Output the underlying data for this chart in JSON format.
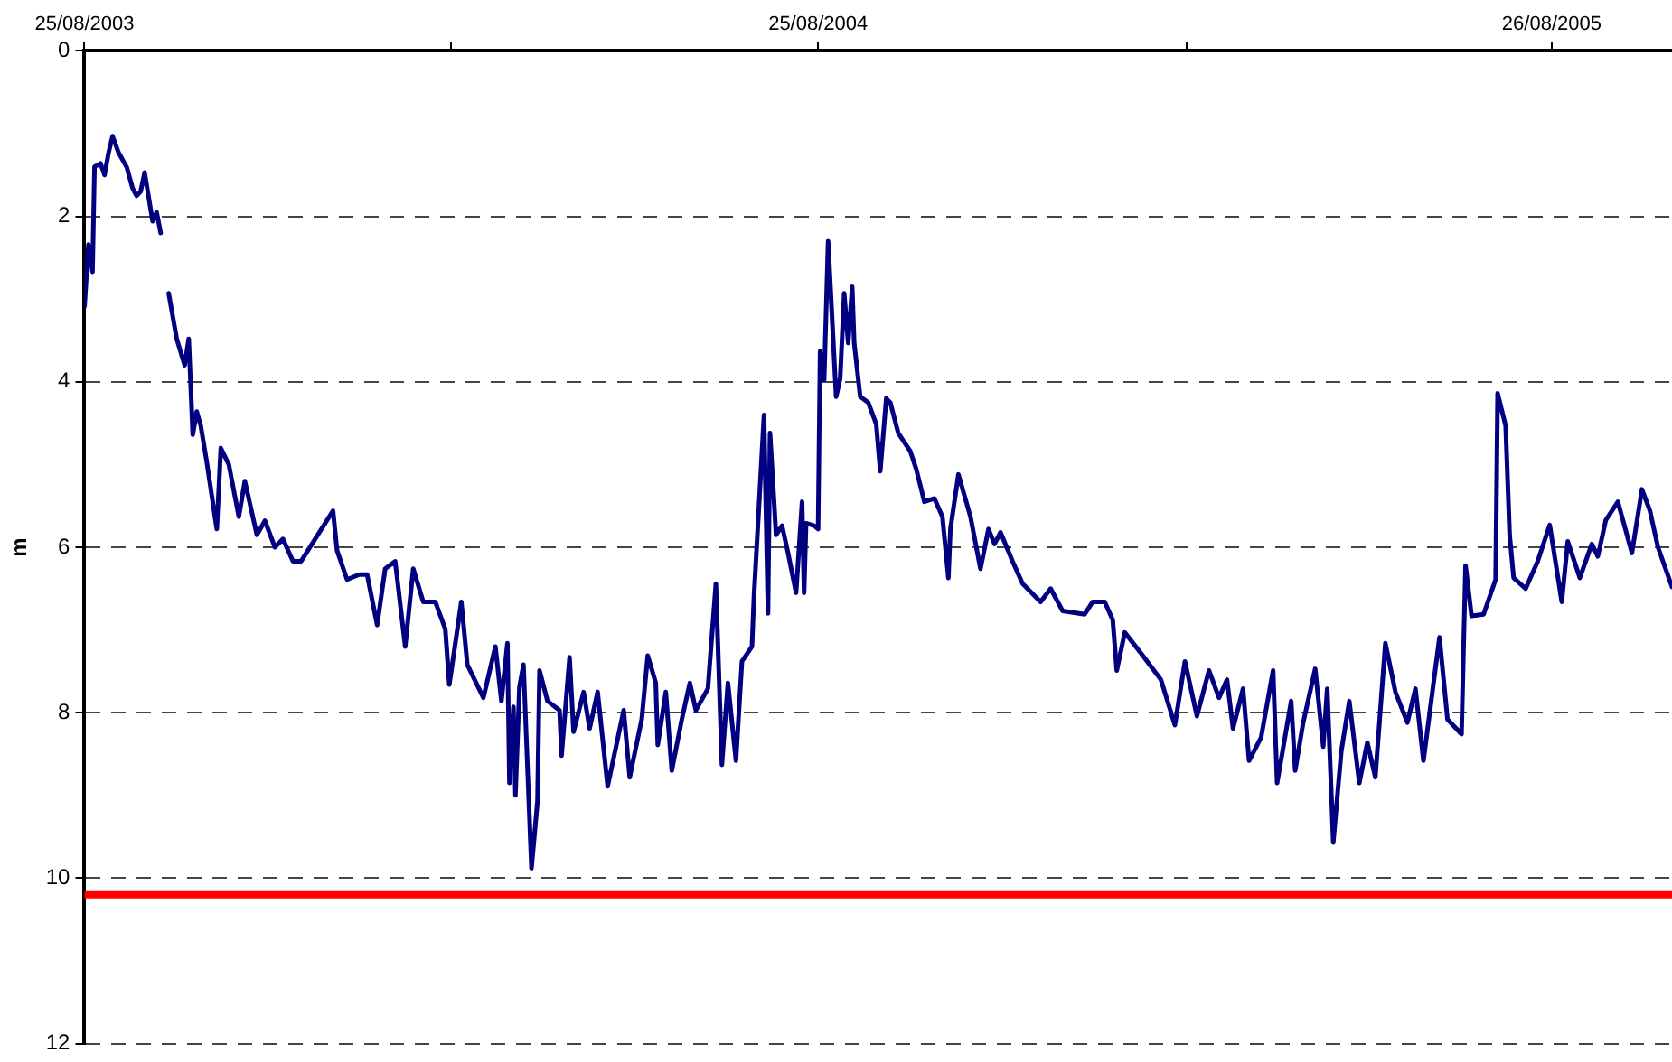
{
  "chart_data": {
    "type": "line",
    "ylabel": "m",
    "ylim": [
      12,
      0
    ],
    "yticks": [
      0,
      2,
      4,
      6,
      8,
      10,
      12
    ],
    "xlim": [
      "2003-08-25",
      "2005-10-25"
    ],
    "xticks": [
      {
        "value": "2003-08-25",
        "label": "25/08/2003"
      },
      {
        "value": "2004-02-24",
        "label": null
      },
      {
        "value": "2004-08-25",
        "label": "25/08/2004"
      },
      {
        "value": "2005-02-25",
        "label": null
      },
      {
        "value": "2005-08-26",
        "label": "26/08/2005"
      }
    ],
    "grid": "y",
    "legend": false,
    "line_style": "solid",
    "marker": "none",
    "ref_lines": [
      {
        "axis": "y",
        "value": 10.2,
        "color": "#ff0000",
        "line_style": "solid"
      }
    ],
    "x": [
      "2003-08-25",
      "2003-08-27",
      "2003-08-29",
      "2003-08-30",
      "2003-09-02",
      "2003-09-04",
      "2003-09-06",
      "2003-09-08",
      "2003-09-11",
      "2003-09-15",
      "2003-09-18",
      "2003-09-20",
      "2003-09-22",
      "2003-09-24",
      "2003-09-28",
      "2003-09-30",
      "2003-10-02",
      "2003-10-04",
      "2003-10-06",
      "2003-10-10",
      "2003-10-14",
      "2003-10-16",
      "2003-10-18",
      "2003-10-20",
      "2003-10-22",
      "2003-10-25",
      "2003-10-30",
      "2003-11-01",
      "2003-11-05",
      "2003-11-10",
      "2003-11-13",
      "2003-11-19",
      "2003-11-23",
      "2003-11-28",
      "2003-12-02",
      "2003-12-07",
      "2003-12-11",
      "2003-12-27",
      "2003-12-29",
      "2004-01-03",
      "2004-01-09",
      "2004-01-13",
      "2004-01-18",
      "2004-01-22",
      "2004-01-27",
      "2004-02-01",
      "2004-02-05",
      "2004-02-10",
      "2004-02-16",
      "2004-02-21",
      "2004-02-23",
      "2004-02-29",
      "2004-03-03",
      "2004-03-11",
      "2004-03-17",
      "2004-03-20",
      "2004-03-23",
      "2004-03-24",
      "2004-03-26",
      "2004-03-27",
      "2004-03-29",
      "2004-03-31",
      "2004-04-04",
      "2004-04-07",
      "2004-04-08",
      "2004-04-12",
      "2004-04-18",
      "2004-04-19",
      "2004-04-23",
      "2004-04-25",
      "2004-04-30",
      "2004-05-03",
      "2004-05-07",
      "2004-05-12",
      "2004-05-20",
      "2004-05-23",
      "2004-05-29",
      "2004-06-01",
      "2004-06-05",
      "2004-06-06",
      "2004-06-10",
      "2004-06-13",
      "2004-06-18",
      "2004-06-22",
      "2004-06-25",
      "2004-07-01",
      "2004-07-05",
      "2004-07-08",
      "2004-07-11",
      "2004-07-15",
      "2004-07-18",
      "2004-07-23",
      "2004-07-24",
      "2004-07-29",
      "2004-07-31",
      "2004-08-01",
      "2004-08-04",
      "2004-08-07",
      "2004-08-10",
      "2004-08-14",
      "2004-08-17",
      "2004-08-18",
      "2004-08-19",
      "2004-08-23",
      "2004-08-25",
      "2004-08-26",
      "2004-08-28",
      "2004-08-30",
      "2004-09-03",
      "2004-09-05",
      "2004-09-07",
      "2004-09-09",
      "2004-09-11",
      "2004-09-12",
      "2004-09-15",
      "2004-09-19",
      "2004-09-23",
      "2004-09-25",
      "2004-09-28",
      "2004-09-30",
      "2004-10-04",
      "2004-10-10",
      "2004-10-13",
      "2004-10-17",
      "2004-10-22",
      "2004-10-26",
      "2004-10-29",
      "2004-10-30",
      "2004-11-03",
      "2004-11-09",
      "2004-11-14",
      "2004-11-18",
      "2004-11-21",
      "2004-11-24",
      "2004-11-30",
      "2004-12-05",
      "2004-12-14",
      "2004-12-19",
      "2004-12-25",
      "2005-01-05",
      "2005-01-09",
      "2005-01-15",
      "2005-01-19",
      "2005-01-21",
      "2005-01-25",
      "2005-02-03",
      "2005-02-12",
      "2005-02-19",
      "2005-02-24",
      "2005-03-02",
      "2005-03-08",
      "2005-03-13",
      "2005-03-17",
      "2005-03-20",
      "2005-03-25",
      "2005-03-28",
      "2005-04-03",
      "2005-04-09",
      "2005-04-11",
      "2005-04-18",
      "2005-04-20",
      "2005-04-24",
      "2005-04-30",
      "2005-05-04",
      "2005-05-06",
      "2005-05-09",
      "2005-05-13",
      "2005-05-17",
      "2005-05-22",
      "2005-05-26",
      "2005-05-30",
      "2005-06-04",
      "2005-06-09",
      "2005-06-15",
      "2005-06-19",
      "2005-06-23",
      "2005-07-01",
      "2005-07-05",
      "2005-07-12",
      "2005-07-14",
      "2005-07-17",
      "2005-07-23",
      "2005-07-29",
      "2005-07-30",
      "2005-08-03",
      "2005-08-05",
      "2005-08-07",
      "2005-08-13",
      "2005-08-19",
      "2005-08-25",
      "2005-08-31",
      "2005-09-03",
      "2005-09-09",
      "2005-09-15",
      "2005-09-18",
      "2005-09-22",
      "2005-09-28",
      "2005-10-05",
      "2005-10-10",
      "2005-10-14",
      "2005-10-18",
      "2005-10-25"
    ],
    "series": [
      {
        "color": "#000080",
        "values": [
          3.09,
          2.34,
          2.67,
          1.4,
          1.36,
          1.5,
          1.23,
          1.03,
          1.23,
          1.4,
          1.66,
          1.75,
          1.7,
          1.47,
          2.06,
          1.95,
          2.2,
          null,
          2.93,
          3.48,
          3.8,
          3.48,
          4.64,
          4.36,
          4.53,
          4.97,
          5.78,
          4.8,
          5.0,
          5.63,
          5.2,
          5.85,
          5.68,
          6.0,
          5.9,
          6.17,
          6.17,
          5.56,
          6.04,
          6.39,
          6.33,
          6.33,
          6.94,
          6.26,
          6.17,
          7.2,
          6.26,
          6.66,
          6.66,
          6.99,
          7.66,
          6.66,
          7.42,
          7.82,
          7.2,
          7.86,
          7.16,
          8.85,
          7.93,
          9.0,
          7.69,
          7.42,
          9.88,
          9.07,
          7.49,
          7.86,
          7.97,
          8.52,
          7.33,
          8.23,
          7.75,
          8.19,
          7.75,
          8.89,
          7.97,
          8.78,
          8.08,
          7.31,
          7.64,
          8.39,
          7.75,
          8.7,
          8.08,
          7.64,
          7.97,
          7.71,
          6.44,
          8.63,
          7.64,
          8.58,
          7.38,
          7.2,
          6.59,
          4.4,
          6.8,
          4.62,
          5.85,
          5.74,
          6.07,
          6.55,
          5.45,
          6.55,
          5.71,
          5.74,
          5.78,
          3.63,
          3.98,
          2.3,
          4.18,
          3.96,
          2.93,
          3.53,
          2.85,
          3.53,
          4.18,
          4.25,
          4.51,
          5.08,
          4.2,
          4.25,
          4.62,
          4.84,
          5.06,
          5.45,
          5.41,
          5.63,
          6.37,
          5.78,
          5.12,
          5.63,
          6.26,
          5.78,
          5.96,
          5.82,
          6.17,
          6.44,
          6.66,
          6.5,
          6.77,
          6.81,
          6.66,
          6.66,
          6.88,
          7.49,
          7.03,
          7.31,
          7.6,
          8.15,
          7.38,
          8.04,
          7.49,
          7.82,
          7.6,
          8.19,
          7.71,
          8.58,
          8.3,
          7.49,
          8.85,
          7.86,
          8.7,
          8.12,
          7.47,
          8.41,
          7.71,
          9.57,
          8.47,
          7.86,
          8.85,
          8.36,
          8.78,
          7.16,
          7.75,
          8.12,
          7.71,
          8.58,
          7.09,
          8.08,
          8.26,
          6.22,
          6.83,
          6.81,
          6.39,
          4.14,
          4.53,
          5.85,
          6.37,
          6.5,
          6.17,
          5.73,
          6.66,
          5.93,
          6.37,
          5.96,
          6.11,
          5.67,
          5.45,
          6.07,
          5.3,
          5.56,
          6.0,
          6.48
        ]
      }
    ]
  }
}
